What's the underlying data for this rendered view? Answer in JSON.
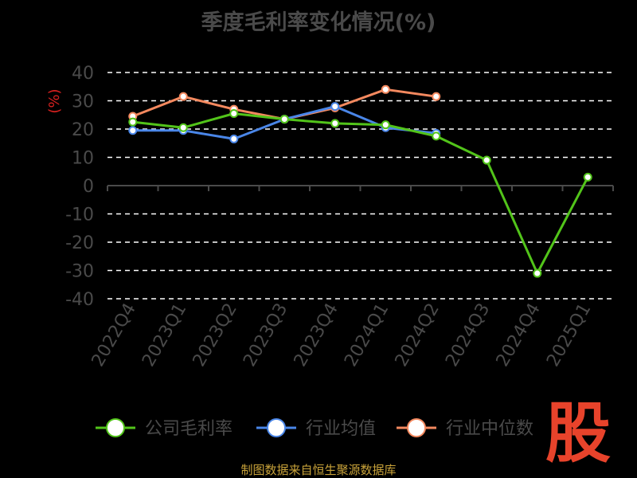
{
  "title": "季度毛利率变化情况(%)",
  "source": "制图数据来自恒生聚源数据库",
  "watermark": "股",
  "chart_data": {
    "type": "line",
    "title": "季度毛利率变化情况(%)",
    "ylabel": "(%)",
    "xlabel": "",
    "ylim": [
      -40,
      40
    ],
    "yticks": [
      40,
      30,
      20,
      10,
      0,
      -10,
      -20,
      -30,
      -40
    ],
    "grid": true,
    "legend_position": "bottom",
    "categories": [
      "2022Q4",
      "2023Q1",
      "2023Q2",
      "2023Q3",
      "2023Q4",
      "2024Q1",
      "2024Q2",
      "2024Q3",
      "2024Q4",
      "2025Q1"
    ],
    "series": [
      {
        "name": "公司毛利率",
        "color": "#52c41a",
        "values": [
          22.5,
          20.5,
          25.5,
          23.5,
          22,
          21.5,
          17.5,
          9,
          -31,
          3
        ]
      },
      {
        "name": "行业均值",
        "color": "#4a86e8",
        "values": [
          19.5,
          19.5,
          16.5,
          23.5,
          28,
          20.5,
          18.5,
          null,
          null,
          null
        ]
      },
      {
        "name": "行业中位数",
        "color": "#f4895f",
        "values": [
          24.5,
          31.5,
          27,
          23.5,
          27.5,
          34,
          31.5,
          null,
          null,
          null
        ]
      }
    ]
  }
}
